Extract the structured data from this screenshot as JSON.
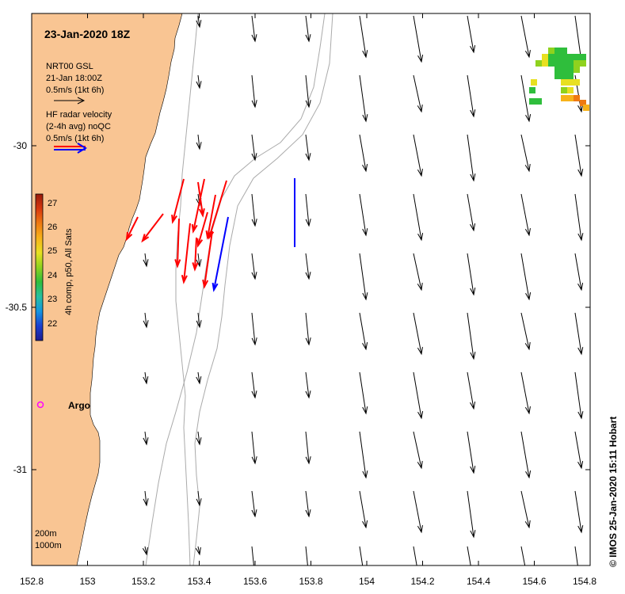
{
  "title": "23-Jan-2020 18Z",
  "credit": "© IMOS 25-Jan-2020 15:11 Hobart",
  "legend": {
    "model_lines": [
      "NRT00 GSL",
      "21-Jan 18:00Z",
      "0.5m/s (1kt 6h)"
    ],
    "radar_lines": [
      "HF radar velocity",
      "(2-4h avg) noQC",
      "0.5m/s (1kt 6h)"
    ]
  },
  "colorbar": {
    "label": "4h comp, p50, All Sats",
    "ticks": [
      "27",
      "26",
      "25",
      "24",
      "23",
      "22"
    ],
    "colors": [
      "#1e1c8f",
      "#1b3fd0",
      "#1696e0",
      "#27c0a0",
      "#2fbe3c",
      "#8fd21e",
      "#e8e020",
      "#f7b21a",
      "#ef7a12",
      "#d8380e",
      "#981a0c"
    ]
  },
  "argo_label": "Argo",
  "contour_labels": [
    "200m",
    "1000m"
  ],
  "axes": {
    "x_ticks": [
      "152.8",
      "153",
      "153.2",
      "153.4",
      "153.6",
      "153.8",
      "154",
      "154.2",
      "154.4",
      "154.6",
      "154.8"
    ],
    "y_ticks": [
      "-30",
      "-30.5",
      "-31"
    ],
    "x_range": [
      152.8,
      154.8
    ],
    "y_range": [
      -31.3,
      -29.6
    ]
  },
  "colors": {
    "land": "#f9c593",
    "radar_east": "#ff0000",
    "radar_west": "#0000ff",
    "argo": "#ff00ff",
    "contour": "#aaaaaa",
    "model_arrow": "#000000"
  }
}
